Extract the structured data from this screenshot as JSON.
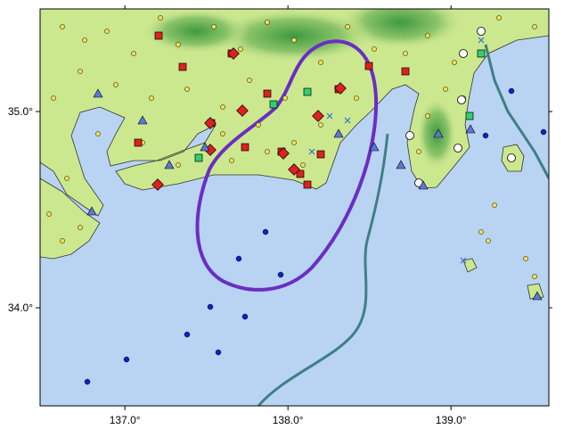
{
  "map": {
    "xlim": [
      136.48,
      139.6
    ],
    "ylim": [
      33.5,
      35.523
    ],
    "xticks": [
      {
        "value": 137,
        "label": "137.0°"
      },
      {
        "value": 138,
        "label": "138.0°"
      },
      {
        "value": 139,
        "label": "139.0°"
      }
    ],
    "yticks": [
      {
        "value": 35,
        "label": "35.0°"
      },
      {
        "value": 34,
        "label": "34.0°"
      }
    ]
  }
}
